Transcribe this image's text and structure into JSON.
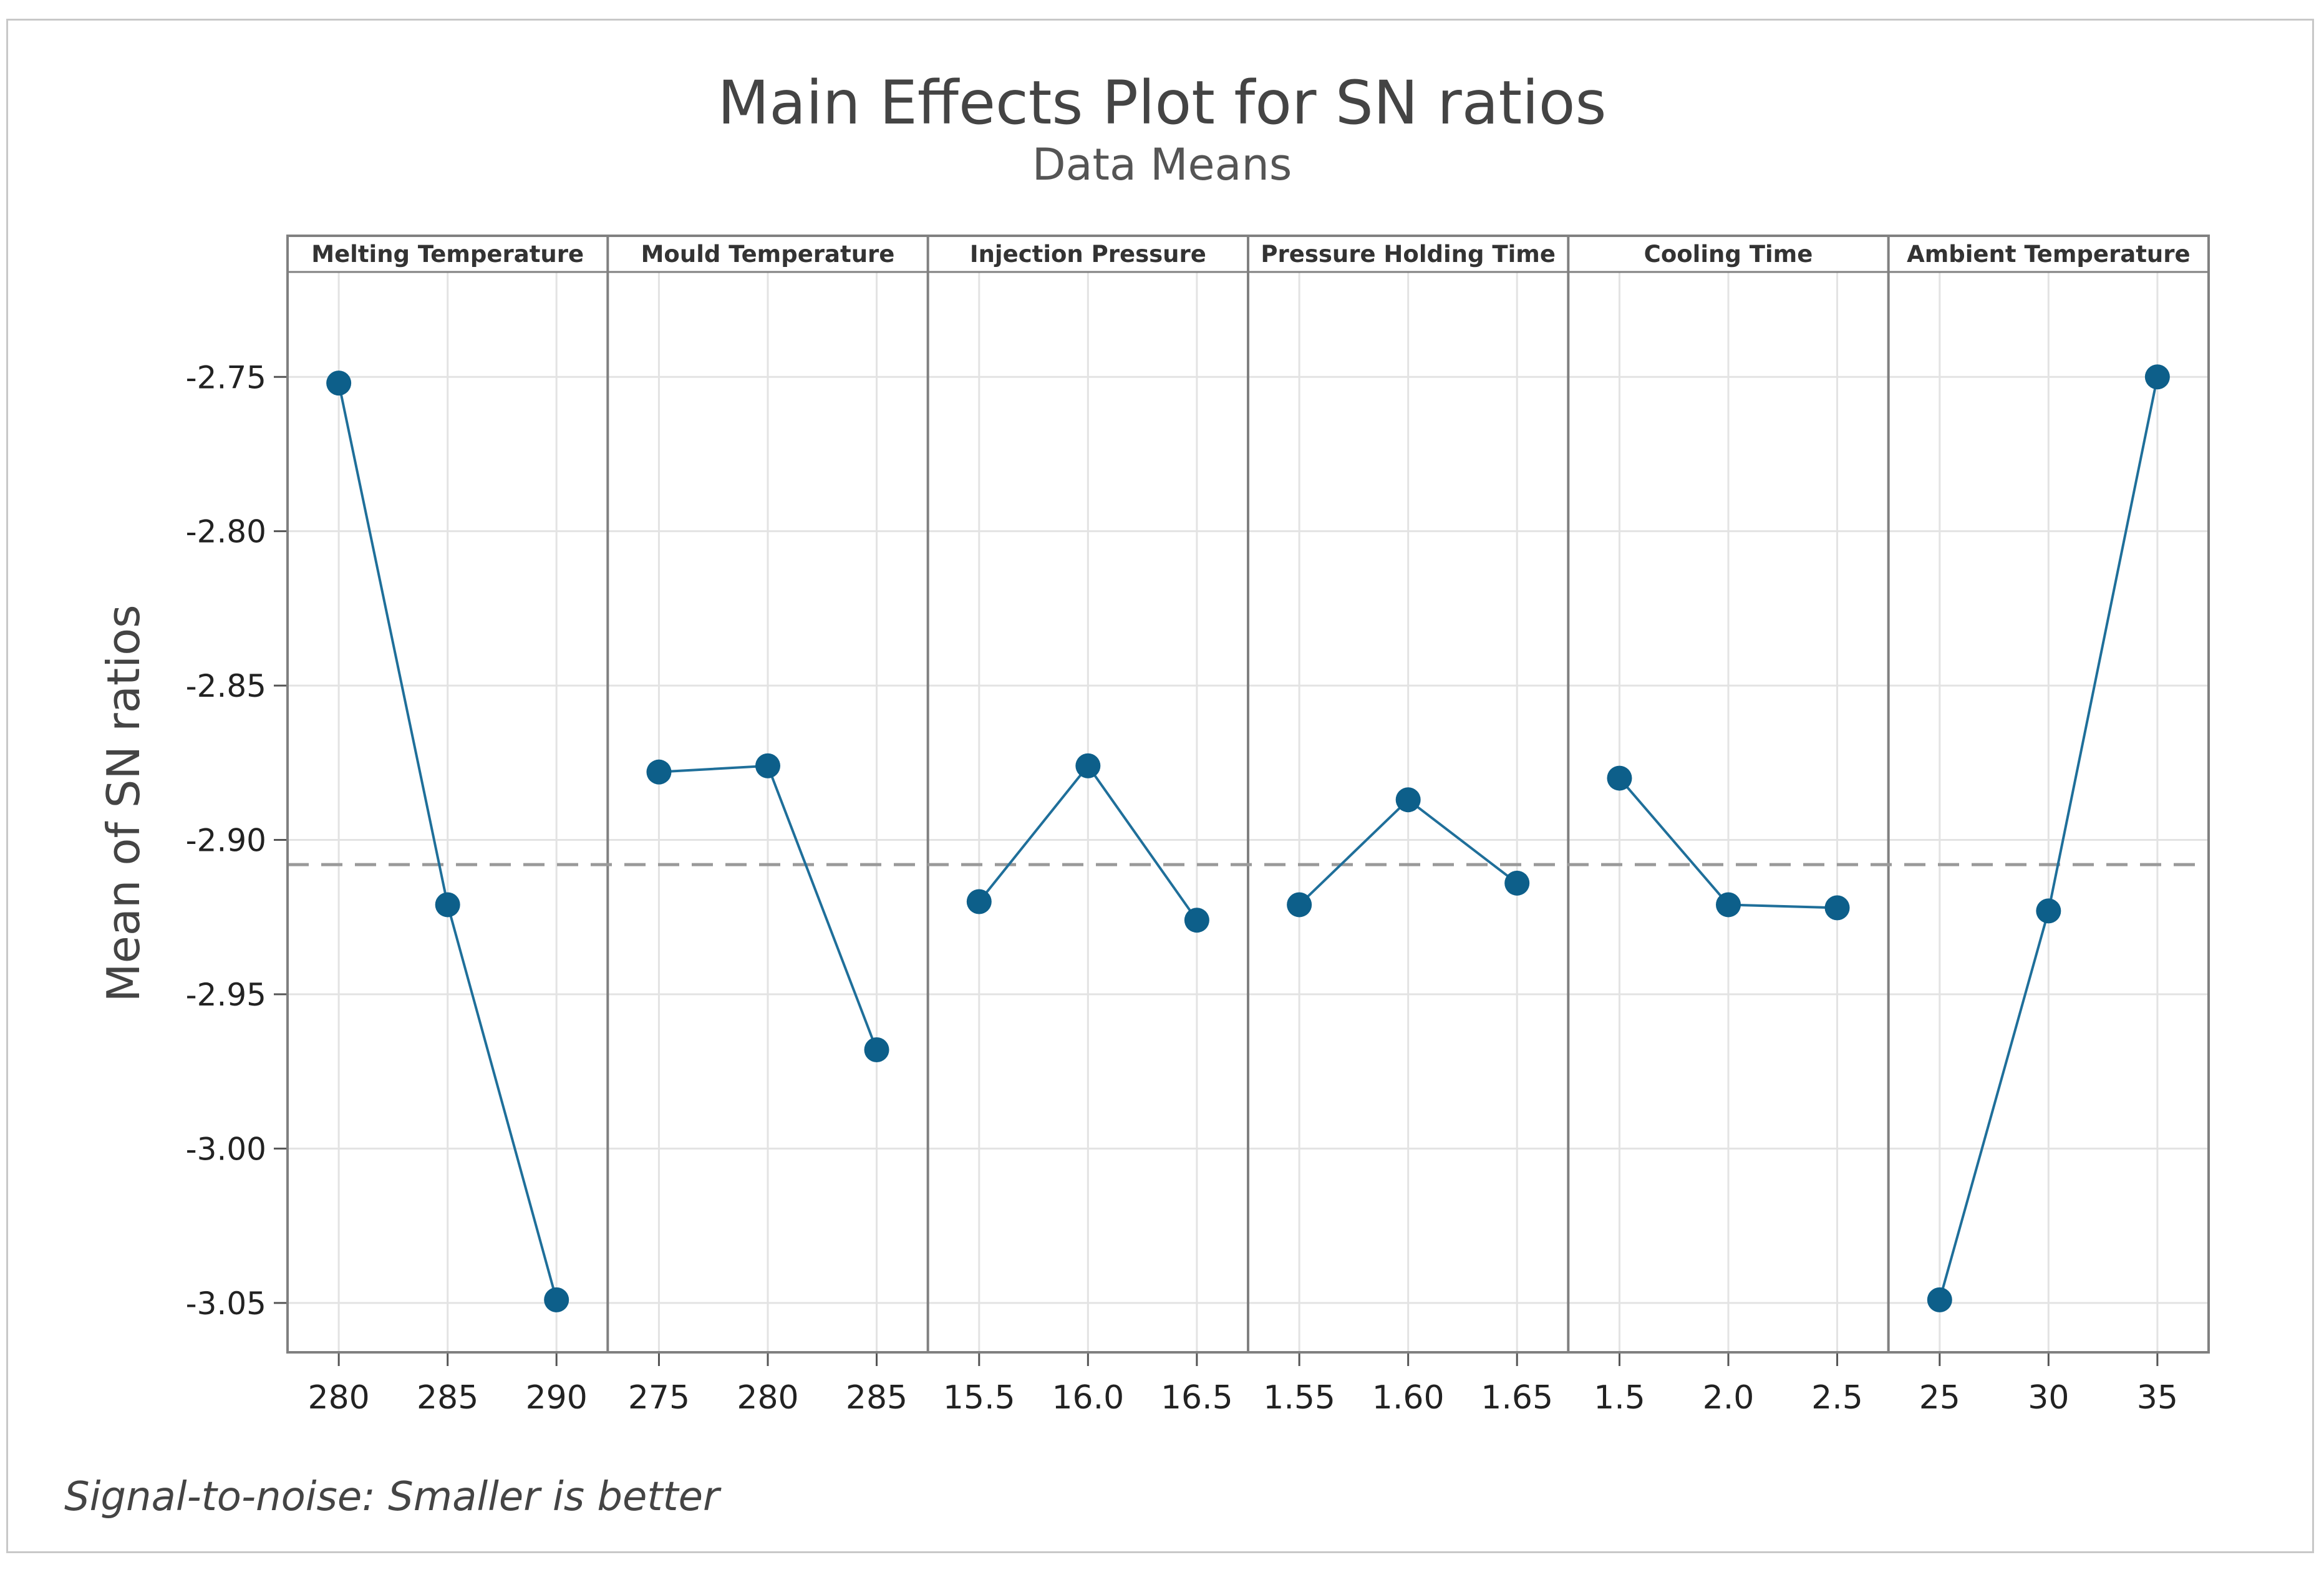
{
  "chart_data": {
    "type": "line",
    "title": "Main Effects Plot for SN ratios",
    "subtitle": "Data Means",
    "ylabel": "Mean of SN ratios",
    "xlabel": "",
    "ylim": [
      -3.066,
      -2.716
    ],
    "yticks": [
      -2.75,
      -2.8,
      -2.85,
      -2.9,
      -2.95,
      -3.0,
      -3.05
    ],
    "ytick_labels": [
      "-2.75",
      "-2.80",
      "-2.85",
      "-2.90",
      "-2.95",
      "-3.00",
      "-3.05"
    ],
    "reference_line": {
      "value": -2.908,
      "style": "dashed"
    },
    "grid": true,
    "footnote": "Signal-to-noise: Smaller is better",
    "series_color": "#1f6f9a",
    "marker_color": "#0d5f8a",
    "panels": [
      {
        "name": "Melting Temperature",
        "categories": [
          "280",
          "285",
          "290"
        ],
        "values": [
          -2.752,
          -2.921,
          -3.049
        ]
      },
      {
        "name": "Mould Temperature",
        "categories": [
          "275",
          "280",
          "285"
        ],
        "values": [
          -2.878,
          -2.876,
          -2.968
        ]
      },
      {
        "name": "Injection Pressure",
        "categories": [
          "15.5",
          "16.0",
          "16.5"
        ],
        "values": [
          -2.92,
          -2.876,
          -2.926
        ]
      },
      {
        "name": "Pressure Holding Time",
        "categories": [
          "1.55",
          "1.60",
          "1.65"
        ],
        "values": [
          -2.921,
          -2.887,
          -2.914
        ]
      },
      {
        "name": "Cooling Time",
        "categories": [
          "1.5",
          "2.0",
          "2.5"
        ],
        "values": [
          -2.88,
          -2.921,
          -2.922
        ]
      },
      {
        "name": "Ambient Temperature",
        "categories": [
          "25",
          "30",
          "35"
        ],
        "values": [
          -3.049,
          -2.923,
          -2.75
        ]
      }
    ]
  }
}
